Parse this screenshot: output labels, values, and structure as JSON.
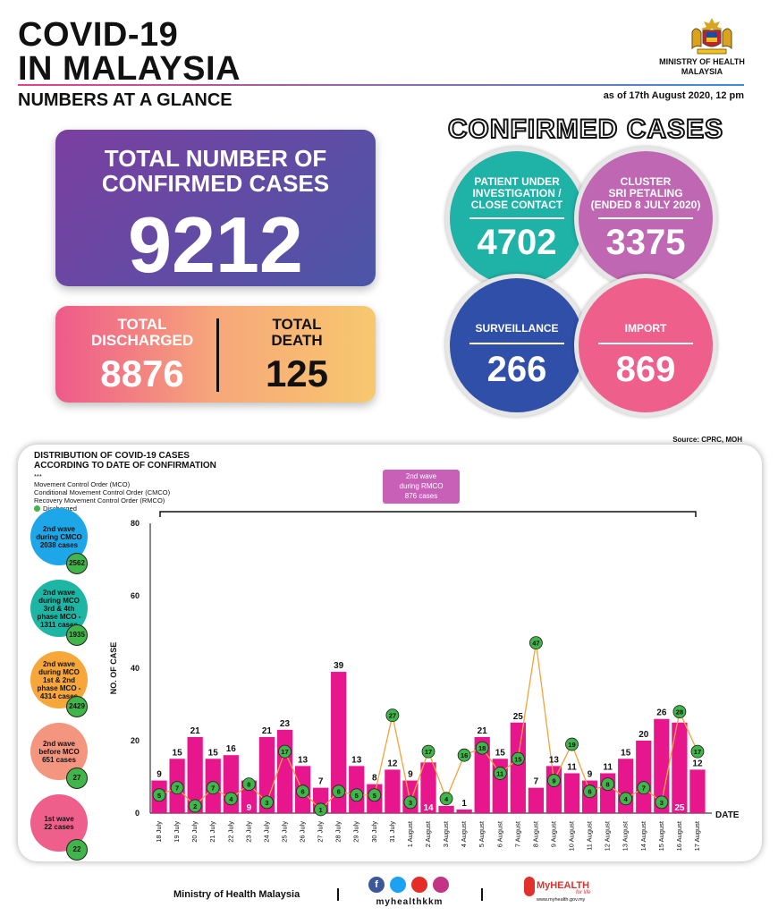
{
  "header": {
    "title_line1": "COVID-19",
    "title_line2": "IN MALAYSIA",
    "subtitle": "NUMBERS AT A GLANCE",
    "ministry_line1": "MINISTRY OF HEALTH",
    "ministry_line2": "MALAYSIA",
    "as_of": "as of 17th August 2020, 12 pm"
  },
  "totals": {
    "confirmed_label_1": "TOTAL NUMBER OF",
    "confirmed_label_2": "CONFIRMED CASES",
    "confirmed_value": "9212",
    "discharged_label_1": "TOTAL",
    "discharged_label_2": "DISCHARGED",
    "discharged_value": "8876",
    "death_label_1": "TOTAL",
    "death_label_2": "DEATH",
    "death_value": "125"
  },
  "confirmed_cases": {
    "title": "CONFIRMED CASES",
    "pui_label": [
      "PATIENT UNDER",
      "INVESTIGATION /",
      "CLOSE CONTACT"
    ],
    "pui_value": "4702",
    "cluster_label": [
      "CLUSTER",
      "SRI PETALING",
      "(ENDED 8 JULY 2020)"
    ],
    "cluster_value": "3375",
    "surveillance_label": "SURVEILLANCE",
    "surveillance_value": "266",
    "import_label": "IMPORT",
    "import_value": "869",
    "colors": {
      "pui": "#1fb2a6",
      "cluster": "#c067b3",
      "surveillance": "#2f4fa8",
      "import": "#ee5f8c"
    }
  },
  "source": "Source: CPRC, MOH",
  "panel": {
    "title_line1": "DISTRIBUTION OF COVID-19 CASES",
    "title_line2": "ACCORDING TO DATE OF CONFIRMATION",
    "stars": "***",
    "legend_1": "Movement Control Order (MCO)",
    "legend_2": "Conditional Movement Control Order (CMCO)",
    "legend_3": "Recovery Movement Control Order (RMCO)",
    "legend_discharged": "Discharged",
    "rmco_label": [
      "2nd wave",
      "during RMCO",
      "876 cases"
    ],
    "waves": [
      {
        "lines": [
          "2nd wave",
          "during CMCO",
          "2038 cases"
        ],
        "discharged": "2562",
        "color": "#1ea7e8"
      },
      {
        "lines": [
          "2nd wave",
          "during MCO",
          "3rd & 4th",
          "phase MCO -",
          "1311 cases"
        ],
        "discharged": "1935",
        "color": "#1db5a4"
      },
      {
        "lines": [
          "2nd wave",
          "during MCO",
          "1st & 2nd",
          "phase MCO -",
          "4314 cases"
        ],
        "discharged": "2429",
        "color": "#f7a63a"
      },
      {
        "lines": [
          "2nd wave",
          "before MCO",
          "651 cases"
        ],
        "discharged": "27",
        "color": "#f4957f"
      },
      {
        "lines": [
          "1st wave",
          "22 cases"
        ],
        "discharged": "22",
        "color": "#ee5f8c"
      }
    ]
  },
  "chart_data": {
    "type": "bar",
    "ylabel": "NO. OF CASE",
    "xlabel": "DATE",
    "ylim": [
      0,
      80
    ],
    "yticks": [
      0,
      20,
      40,
      60,
      80
    ],
    "categories": [
      "18 July",
      "19 July",
      "20 July",
      "21 July",
      "22 July",
      "23 July",
      "24 July",
      "25 July",
      "26 July",
      "27 July",
      "28 July",
      "29 July",
      "30 July",
      "31 July",
      "1 August",
      "2 August",
      "3 August",
      "4 August",
      "5 August",
      "6 August",
      "7 August",
      "8 August",
      "9 August",
      "10 August",
      "11 August",
      "12 August",
      "13 August",
      "14 August",
      "15 August",
      "16 August",
      "17 August"
    ],
    "series": [
      {
        "values": [
          9,
          15,
          21,
          15,
          16,
          9,
          21,
          23,
          13,
          7,
          39,
          13,
          8,
          12,
          9,
          14,
          2,
          1,
          21,
          15,
          25,
          7,
          13,
          11,
          9,
          11,
          15,
          20,
          26,
          25,
          12
        ],
        "color": "#e8168c"
      },
      {
        "name": "Discharged",
        "values": [
          5,
          7,
          2,
          7,
          4,
          8,
          3,
          17,
          6,
          1,
          6,
          5,
          5,
          27,
          3,
          17,
          4,
          16,
          18,
          11,
          15,
          47,
          9,
          19,
          6,
          8,
          4,
          7,
          3,
          28,
          17
        ],
        "color": "#f4a23a"
      }
    ]
  },
  "footer": {
    "ministry": "Ministry of Health Malaysia",
    "handle": "myhealthkkm",
    "brand": "MyHEALTH",
    "brand_tag": "for life",
    "site": "www.myhealth.gov.my"
  }
}
